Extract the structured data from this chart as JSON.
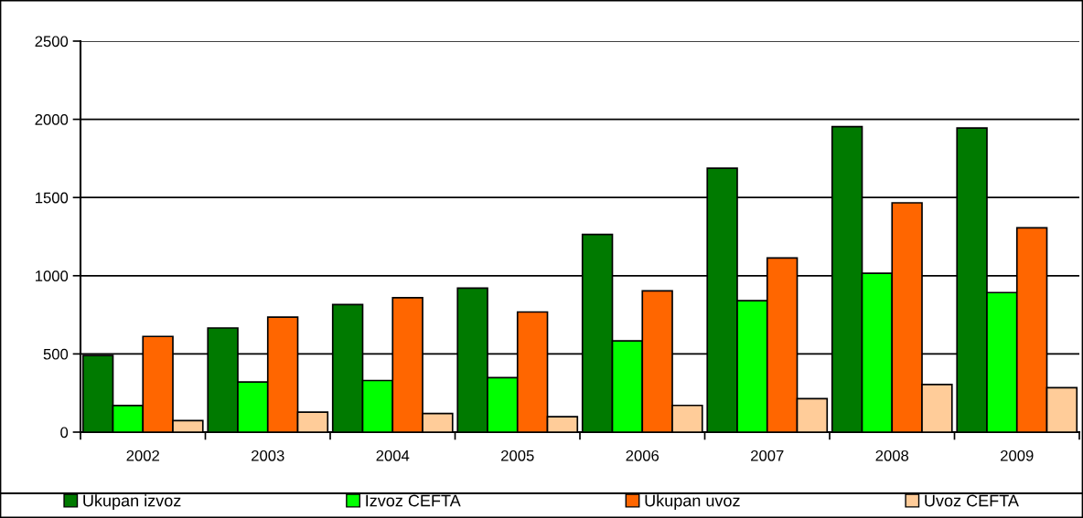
{
  "chart_data": {
    "type": "bar",
    "categories": [
      "2002",
      "2003",
      "2004",
      "2005",
      "2006",
      "2007",
      "2008",
      "2009"
    ],
    "series": [
      {
        "name": "Ukupan izvoz",
        "color": "#007a00",
        "values": [
          490,
          666,
          816,
          921,
          1264,
          1687,
          1953,
          1944
        ]
      },
      {
        "name": "Izvoz CEFTA",
        "color": "#00ff00",
        "values": [
          170,
          321,
          330,
          348,
          583,
          840,
          1016,
          892
        ]
      },
      {
        "name": "Ukupan uvoz",
        "color": "#ff6600",
        "values": [
          612,
          735,
          859,
          768,
          903,
          1113,
          1466,
          1306
        ]
      },
      {
        "name": "Uvoz CEFTA",
        "color": "#ffcc99",
        "values": [
          74,
          128,
          119,
          99,
          171,
          214,
          304,
          284
        ]
      }
    ],
    "ylim": [
      0,
      2500
    ],
    "yticks": [
      0,
      500,
      1000,
      1500,
      2000,
      2500
    ],
    "grid": "y",
    "legend": "bottom"
  }
}
